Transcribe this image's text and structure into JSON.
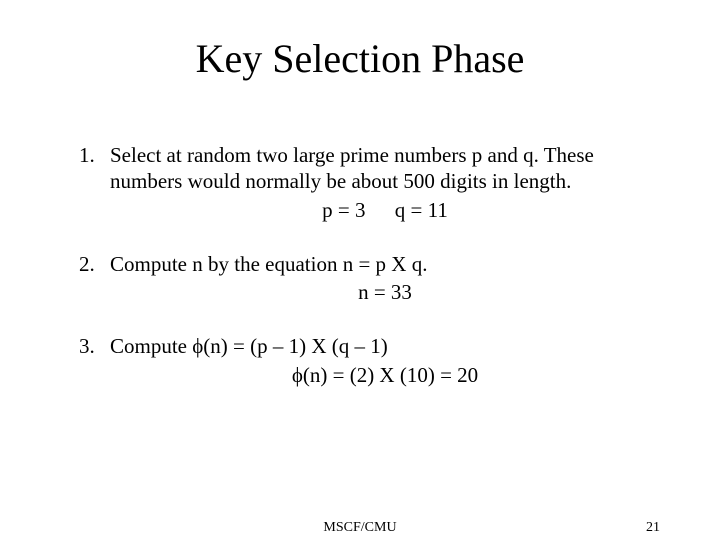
{
  "title": "Key Selection Phase",
  "items": [
    {
      "body": "Select at random two large prime numbers p and q. These numbers would normally be about 500 digits in length.",
      "example_left": "p = 3",
      "example_right": "q = 11"
    },
    {
      "body": "Compute n by the equation n = p X q.",
      "example_center": "n = 33"
    },
    {
      "body": "Compute ϕ(n) = (p – 1) X (q – 1)",
      "example_center": "ϕ(n) = (2) X (10) = 20"
    }
  ],
  "footer": {
    "center": "MSCF/CMU",
    "page": "21"
  },
  "style": {
    "title_fontsize": 40,
    "body_fontsize": 21,
    "footer_fontsize": 14,
    "background": "#ffffff",
    "text_color": "#000000",
    "font_family": "Times New Roman"
  }
}
